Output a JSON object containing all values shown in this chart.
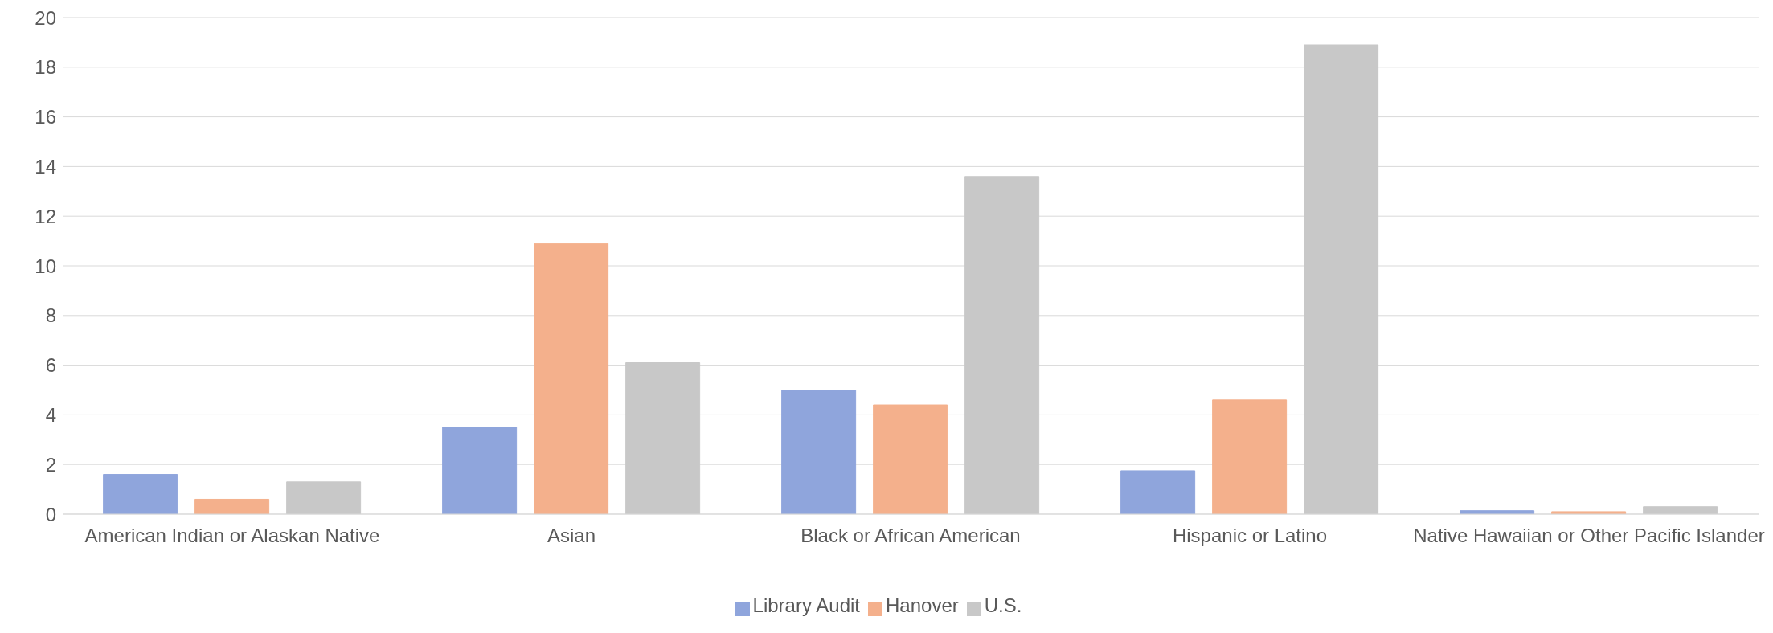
{
  "chart_data": {
    "type": "bar",
    "categories": [
      "American Indian or Alaskan Native",
      "Asian",
      "Black or African American",
      "Hispanic or Latino",
      "Native Hawaiian or Other Pacific Islander"
    ],
    "series": [
      {
        "name": "Library Audit",
        "color": "#8fa5dc",
        "values": [
          1.6,
          3.5,
          5.0,
          1.75,
          0.14
        ]
      },
      {
        "name": "Hanover",
        "color": "#f4b08c",
        "values": [
          0.6,
          10.9,
          4.4,
          4.6,
          0.1
        ]
      },
      {
        "name": "U.S.",
        "color": "#c8c8c8",
        "values": [
          1.3,
          6.1,
          13.6,
          18.9,
          0.3
        ]
      }
    ],
    "ylim": [
      0,
      20
    ],
    "yticks": [
      0,
      2,
      4,
      6,
      8,
      10,
      12,
      14,
      16,
      18,
      20
    ],
    "grid": "y",
    "legend": "bottom"
  }
}
